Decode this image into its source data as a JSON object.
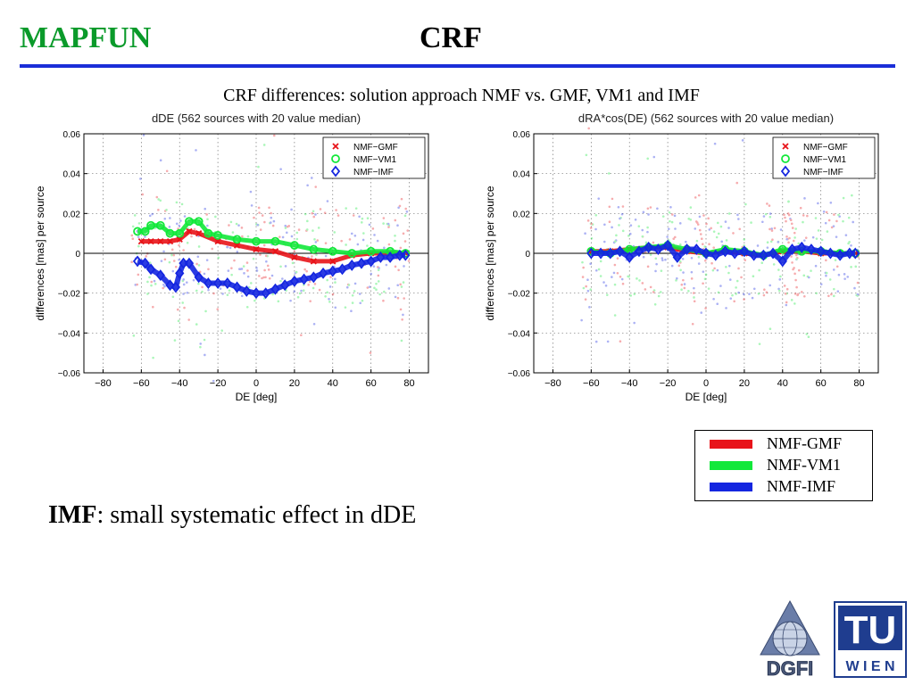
{
  "header": {
    "left": "MAPFUN",
    "center": "CRF"
  },
  "subtitle": "CRF differences: solution approach NMF vs. GMF, VM1 and IMF",
  "colors": {
    "green_title": "#0a9a2a",
    "rule_blue": "#1a2ed8",
    "red": "#e8141a",
    "green": "#12e83a",
    "blue": "#1426e0"
  },
  "legend_box": [
    {
      "label": "NMF-GMF",
      "color": "#e8141a"
    },
    {
      "label": "NMF-VM1",
      "color": "#12e83a"
    },
    {
      "label": "NMF-IMF",
      "color": "#1426e0"
    }
  ],
  "bottom_text": {
    "bold": "IMF",
    "rest": ": small systematic effect in dDE"
  },
  "logos": {
    "dgfi": "DGFI",
    "tu": "TU",
    "wien": "W I E N"
  },
  "chart_data": [
    {
      "id": "dde",
      "type": "scatter",
      "title": "dDE (562 sources with 20 value median)",
      "xlabel": "DE [deg]",
      "ylabel": "differences [mas] per source",
      "xlim": [
        -90,
        90
      ],
      "ylim": [
        -0.06,
        0.06
      ],
      "xticks": [
        -80,
        -60,
        -40,
        -20,
        0,
        20,
        40,
        60,
        80
      ],
      "yticks": [
        -0.06,
        -0.04,
        -0.02,
        0,
        0.02,
        0.04,
        0.06
      ],
      "ytick_labels": [
        "−0.06",
        "−0.04",
        "−0.02",
        "0",
        "0.02",
        "0.04",
        "0.06"
      ],
      "xtick_labels": [
        "−80",
        "−60",
        "−40",
        "−20",
        "0",
        "20",
        "40",
        "60",
        "80"
      ],
      "grid": true,
      "legend_position": "top-right",
      "series": [
        {
          "name": "NMF−GMF",
          "marker": "x",
          "color": "#e8141a",
          "x": [
            -60,
            -55,
            -50,
            -45,
            -40,
            -35,
            -30,
            -20,
            -10,
            0,
            10,
            20,
            30,
            40,
            50,
            60,
            70,
            78
          ],
          "y": [
            0.006,
            0.006,
            0.006,
            0.006,
            0.007,
            0.011,
            0.01,
            0.006,
            0.004,
            0.002,
            0.001,
            -0.002,
            -0.004,
            -0.004,
            -0.001,
            0.0,
            0.0,
            0.0
          ]
        },
        {
          "name": "NMF−VM1",
          "marker": "o",
          "color": "#12e83a",
          "x": [
            -62,
            -58,
            -55,
            -50,
            -45,
            -40,
            -35,
            -30,
            -25,
            -20,
            -10,
            0,
            10,
            20,
            30,
            40,
            50,
            60,
            70,
            78
          ],
          "y": [
            0.011,
            0.011,
            0.014,
            0.014,
            0.01,
            0.01,
            0.016,
            0.016,
            0.01,
            0.009,
            0.007,
            0.006,
            0.006,
            0.004,
            0.002,
            0.001,
            0.0,
            0.001,
            0.001,
            0.0
          ]
        },
        {
          "name": "NMF−IMF",
          "marker": "d",
          "color": "#1426e0",
          "x": [
            -62,
            -58,
            -55,
            -50,
            -45,
            -42,
            -40,
            -38,
            -35,
            -30,
            -25,
            -20,
            -15,
            -10,
            -5,
            0,
            5,
            10,
            15,
            20,
            25,
            30,
            35,
            40,
            45,
            50,
            55,
            60,
            65,
            70,
            75,
            78
          ],
          "y": [
            -0.004,
            -0.005,
            -0.008,
            -0.011,
            -0.016,
            -0.017,
            -0.01,
            -0.005,
            -0.005,
            -0.012,
            -0.015,
            -0.015,
            -0.015,
            -0.017,
            -0.019,
            -0.02,
            -0.02,
            -0.018,
            -0.016,
            -0.014,
            -0.013,
            -0.012,
            -0.01,
            -0.009,
            -0.008,
            -0.006,
            -0.005,
            -0.004,
            -0.002,
            -0.002,
            -0.001,
            -0.001
          ]
        }
      ]
    },
    {
      "id": "dra",
      "type": "scatter",
      "title": "dRA*cos(DE) (562 sources with 20 value median)",
      "xlabel": "DE [deg]",
      "ylabel": "differences [mas] per source",
      "xlim": [
        -90,
        90
      ],
      "ylim": [
        -0.06,
        0.06
      ],
      "xticks": [
        -80,
        -60,
        -40,
        -20,
        0,
        20,
        40,
        60,
        80
      ],
      "yticks": [
        -0.06,
        -0.04,
        -0.02,
        0,
        0.02,
        0.04,
        0.06
      ],
      "ytick_labels": [
        "−0.06",
        "−0.04",
        "−0.02",
        "0",
        "0.02",
        "0.04",
        "0.06"
      ],
      "xtick_labels": [
        "−80",
        "−60",
        "−40",
        "−20",
        "0",
        "20",
        "40",
        "60",
        "80"
      ],
      "grid": true,
      "legend_position": "top-right",
      "series": [
        {
          "name": "NMF−GMF",
          "marker": "x",
          "color": "#e8141a",
          "x": [
            -60,
            -50,
            -40,
            -30,
            -20,
            -10,
            0,
            10,
            20,
            30,
            40,
            50,
            60,
            70,
            78
          ],
          "y": [
            0.001,
            0.001,
            0.002,
            0.003,
            0.003,
            0.001,
            0.0,
            0.001,
            0.0,
            -0.001,
            0.001,
            0.001,
            0.0,
            0.0,
            0.0
          ]
        },
        {
          "name": "NMF−VM1",
          "marker": "o",
          "color": "#12e83a",
          "x": [
            -60,
            -50,
            -40,
            -30,
            -20,
            -10,
            0,
            10,
            20,
            30,
            40,
            50,
            60,
            70,
            78
          ],
          "y": [
            0.001,
            0.0,
            0.002,
            0.003,
            0.004,
            0.002,
            0.0,
            0.002,
            0.001,
            -0.001,
            0.002,
            0.001,
            0.001,
            0.0,
            0.0
          ]
        },
        {
          "name": "NMF−IMF",
          "marker": "d",
          "color": "#1426e0",
          "x": [
            -60,
            -55,
            -50,
            -45,
            -40,
            -35,
            -30,
            -25,
            -20,
            -15,
            -10,
            -5,
            0,
            5,
            10,
            15,
            20,
            25,
            30,
            35,
            40,
            45,
            50,
            55,
            60,
            65,
            70,
            75,
            78
          ],
          "y": [
            0.0,
            0.0,
            0.0,
            0.001,
            -0.002,
            0.001,
            0.003,
            0.002,
            0.004,
            -0.002,
            0.002,
            0.002,
            0.0,
            -0.001,
            0.001,
            0.0,
            0.001,
            -0.001,
            -0.001,
            0.0,
            -0.004,
            0.002,
            0.003,
            0.002,
            0.001,
            0.0,
            -0.001,
            0.0,
            0.0
          ]
        }
      ]
    }
  ]
}
